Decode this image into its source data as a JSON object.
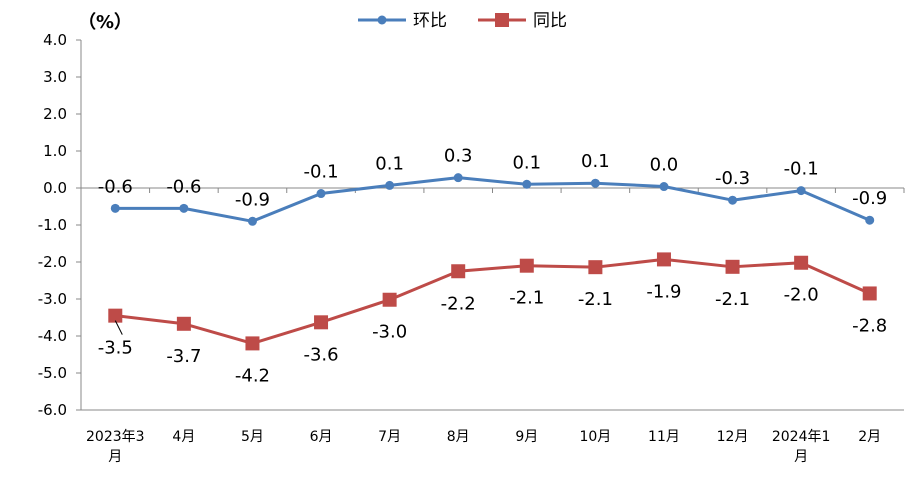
{
  "chart_data": {
    "type": "line",
    "unit_label": "（%）",
    "categories": [
      [
        "2023年3",
        "月"
      ],
      [
        "4月"
      ],
      [
        "5月"
      ],
      [
        "6月"
      ],
      [
        "7月"
      ],
      [
        "8月"
      ],
      [
        "9月"
      ],
      [
        "10月"
      ],
      [
        "11月"
      ],
      [
        "12月"
      ],
      [
        "2024年1",
        "月"
      ],
      [
        "2月"
      ]
    ],
    "ylim": [
      -6.0,
      4.0
    ],
    "yticks": [
      "4.0",
      "3.0",
      "2.0",
      "1.0",
      "0.0",
      "-1.0",
      "-2.0",
      "-3.0",
      "-4.0",
      "-5.0",
      "-6.0"
    ],
    "grid": false,
    "legend_position": "top-center",
    "series": [
      {
        "name": "环比",
        "color": "#4a7ebb",
        "marker": "circle",
        "values": [
          -0.55,
          -0.55,
          -0.9,
          -0.15,
          0.07,
          0.28,
          0.1,
          0.13,
          0.04,
          -0.33,
          -0.07,
          -0.87
        ],
        "labels": [
          "-0.6",
          "-0.6",
          "-0.9",
          "-0.1",
          "0.1",
          "0.3",
          "0.1",
          "0.1",
          "0.0",
          "-0.3",
          "-0.1",
          "-0.9"
        ]
      },
      {
        "name": "同比",
        "color": "#be4b48",
        "marker": "square",
        "values": [
          -3.45,
          -3.67,
          -4.2,
          -3.63,
          -3.02,
          -2.25,
          -2.1,
          -2.14,
          -1.93,
          -2.13,
          -2.02,
          -2.85
        ],
        "labels": [
          "-3.5",
          "-3.7",
          "-4.2",
          "-3.6",
          "-3.0",
          "-2.2",
          "-2.1",
          "-2.1",
          "-1.9",
          "-2.1",
          "-2.0",
          "-2.8"
        ]
      }
    ]
  }
}
